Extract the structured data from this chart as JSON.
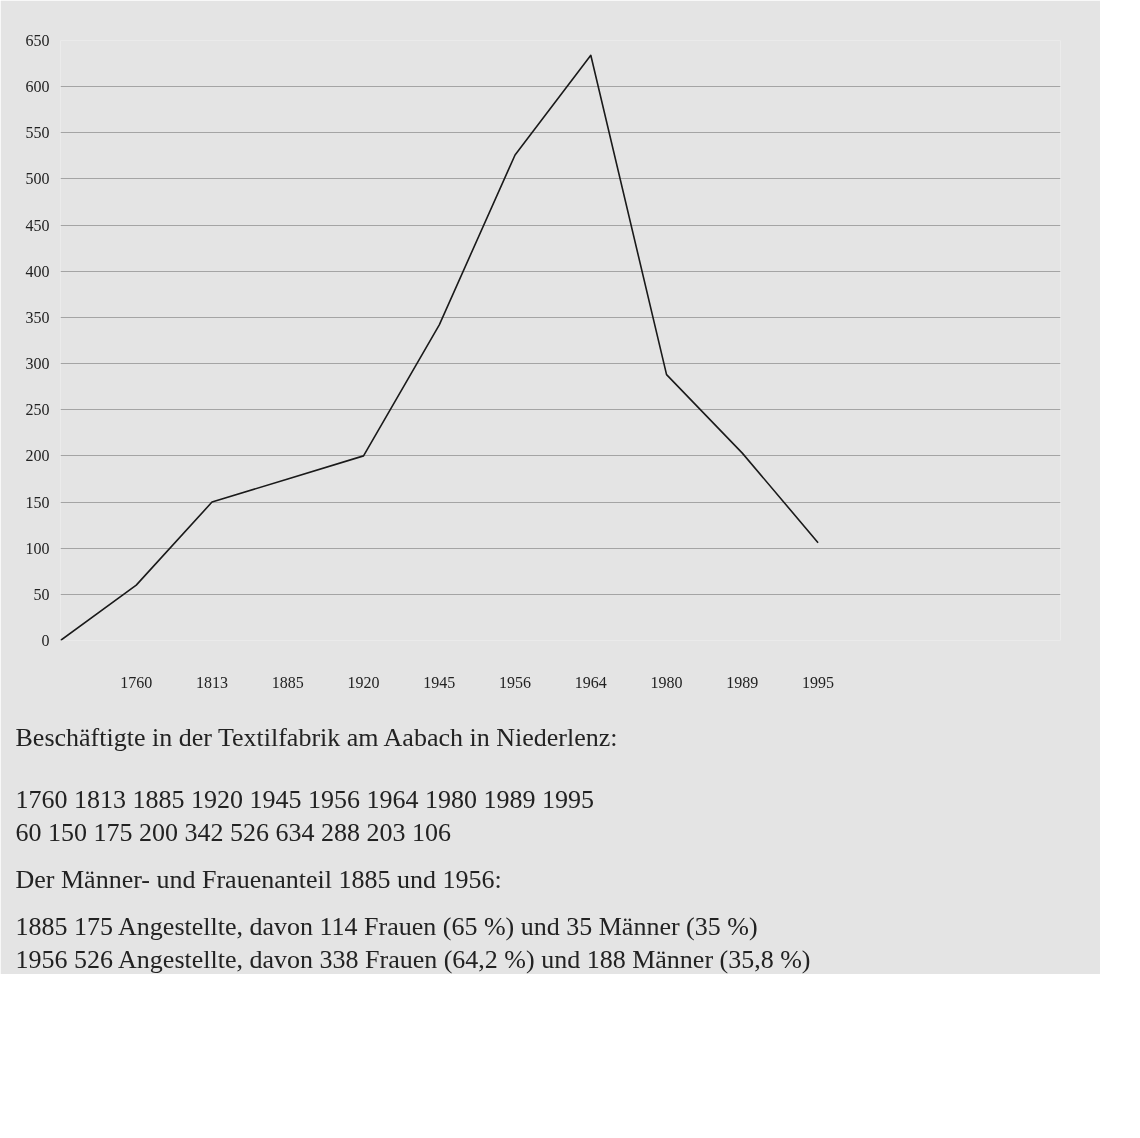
{
  "chart_data": {
    "type": "line",
    "categories": [
      null,
      "1760",
      "1813",
      "1885",
      "1920",
      "1945",
      "1956",
      "1964",
      "1980",
      "1989",
      "1995"
    ],
    "series": [
      {
        "color": "#1a1a1a",
        "values": [
          0,
          60,
          150,
          175,
          200,
          342,
          526,
          634,
          288,
          203,
          106
        ]
      }
    ],
    "ylim": [
      0,
      650
    ],
    "yticks": [
      0,
      50,
      100,
      150,
      200,
      250,
      300,
      350,
      400,
      450,
      500,
      550,
      600,
      650
    ],
    "grid": "y",
    "marker": "none",
    "line_style": "solid",
    "annotations": [
      "Beschäftigte in der Textilfabrik am Aabach in Niederlenz:",
      "1760 1813 1885 1920 1945 1956 1964 1980 1989 1995",
      "60 150 175 200 342 526 634 288 203 106",
      "Der Männer- und Frauenanteil 1885 und 1956:",
      "1885 175 Angestellte, davon 114 Frauen (65 %) und 35 Männer (35 %)",
      "1956 526 Angestellte, davon 338 Frauen (64,2 %) und 188 Männer (35,8 %)"
    ]
  }
}
